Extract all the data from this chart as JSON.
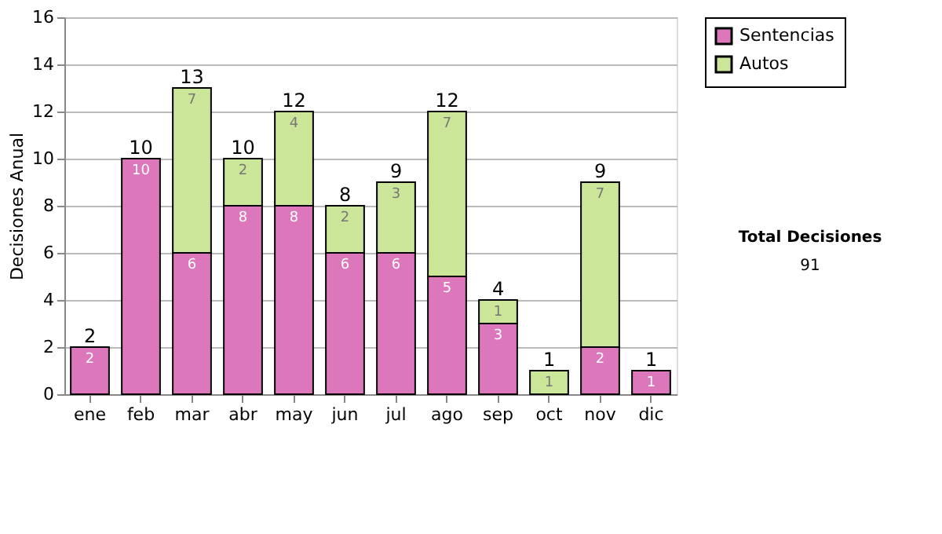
{
  "chart_data": {
    "type": "bar",
    "stacked": true,
    "ylabel": "Decisiones Anual",
    "categories": [
      "ene",
      "feb",
      "mar",
      "abr",
      "may",
      "jun",
      "jul",
      "ago",
      "sep",
      "oct",
      "nov",
      "dic"
    ],
    "series": [
      {
        "name": "Sentencias",
        "color": "#dd77bb",
        "values": [
          2,
          10,
          6,
          8,
          8,
          6,
          6,
          5,
          3,
          0,
          2,
          1
        ],
        "value_labels": [
          "2",
          "10",
          "6",
          "8",
          "8",
          "6",
          "6",
          "5",
          "3",
          null,
          "2",
          "1"
        ]
      },
      {
        "name": "Autos",
        "color": "#cce699",
        "values": [
          0,
          0,
          7,
          2,
          4,
          2,
          3,
          7,
          1,
          1,
          7,
          0
        ],
        "value_labels": [
          null,
          null,
          "7",
          "2",
          "4",
          "2",
          "3",
          "7",
          "1",
          "1",
          "7",
          null
        ]
      }
    ],
    "totals": [
      "2",
      "10",
      "13",
      "10",
      "12",
      "8",
      "9",
      "12",
      "4",
      "1",
      "9",
      "1"
    ],
    "ylim": [
      0,
      16
    ],
    "yticks": [
      0,
      2,
      4,
      6,
      8,
      10,
      12,
      14,
      16
    ],
    "grid": "y",
    "legend": "right",
    "annotations": [
      "Total Decisiones",
      "91"
    ]
  }
}
